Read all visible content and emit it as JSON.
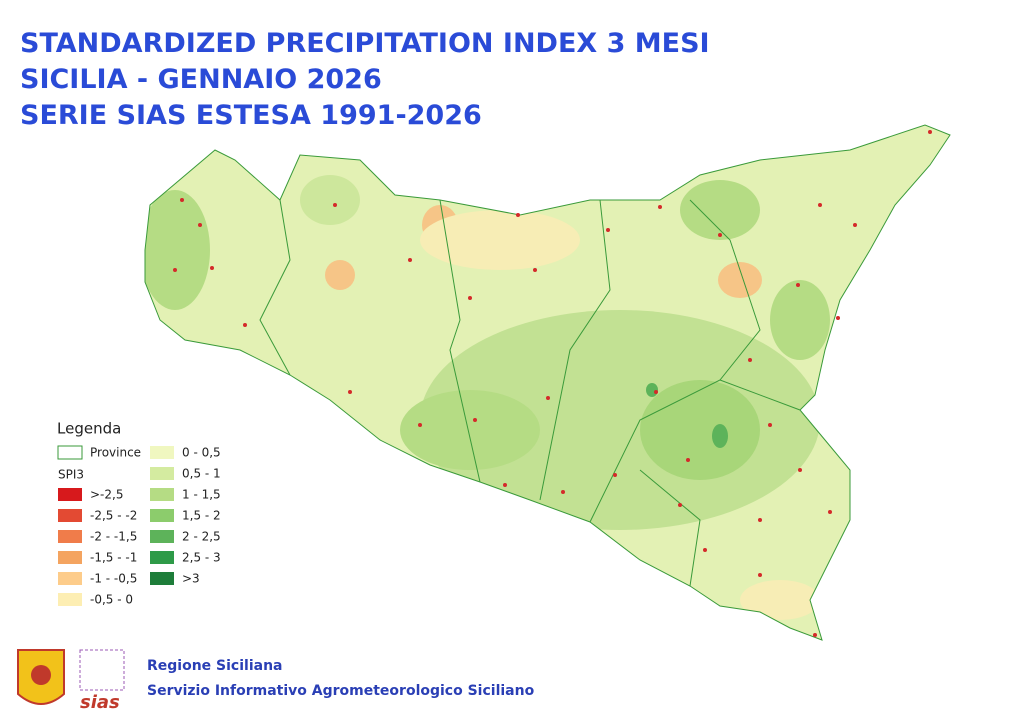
{
  "title": [
    "STANDARDIZED PRECIPITATION INDEX 3 MESI",
    "SICILIA - GENNAIO 2026",
    "SERIE SIAS ESTESA 1991-2026"
  ],
  "legend": {
    "title": "Legenda",
    "province": "Province",
    "index_label": "SPI3",
    "classes_dry": [
      {
        "label": ">-2,5",
        "color": "#d7191c"
      },
      {
        "label": "-2,5 - -2",
        "color": "#e34a33"
      },
      {
        "label": "-2 - -1,5",
        "color": "#f07c4a"
      },
      {
        "label": "-1,5 - -1",
        "color": "#f4a460"
      },
      {
        "label": "-1 - -0,5",
        "color": "#fdcc8a"
      },
      {
        "label": "-0,5 - 0",
        "color": "#fdeeb3"
      }
    ],
    "classes_wet": [
      {
        "label": "0 - 0,5",
        "color": "#f0f7c0"
      },
      {
        "label": "0,5 - 1",
        "color": "#d4eba0"
      },
      {
        "label": "1 - 1,5",
        "color": "#b5dc84"
      },
      {
        "label": "1,5 - 2",
        "color": "#8ccc6c"
      },
      {
        "label": "2 - 2,5",
        "color": "#5db35a"
      },
      {
        "label": "2,5 - 3",
        "color": "#2e9a48"
      },
      {
        "label": ">3",
        "color": "#1e7d3a"
      }
    ]
  },
  "footer": {
    "logo_text": "sias",
    "organization": "Regione Siciliana",
    "service": "Servizio Informativo Agrometeorologico Siciliano"
  }
}
